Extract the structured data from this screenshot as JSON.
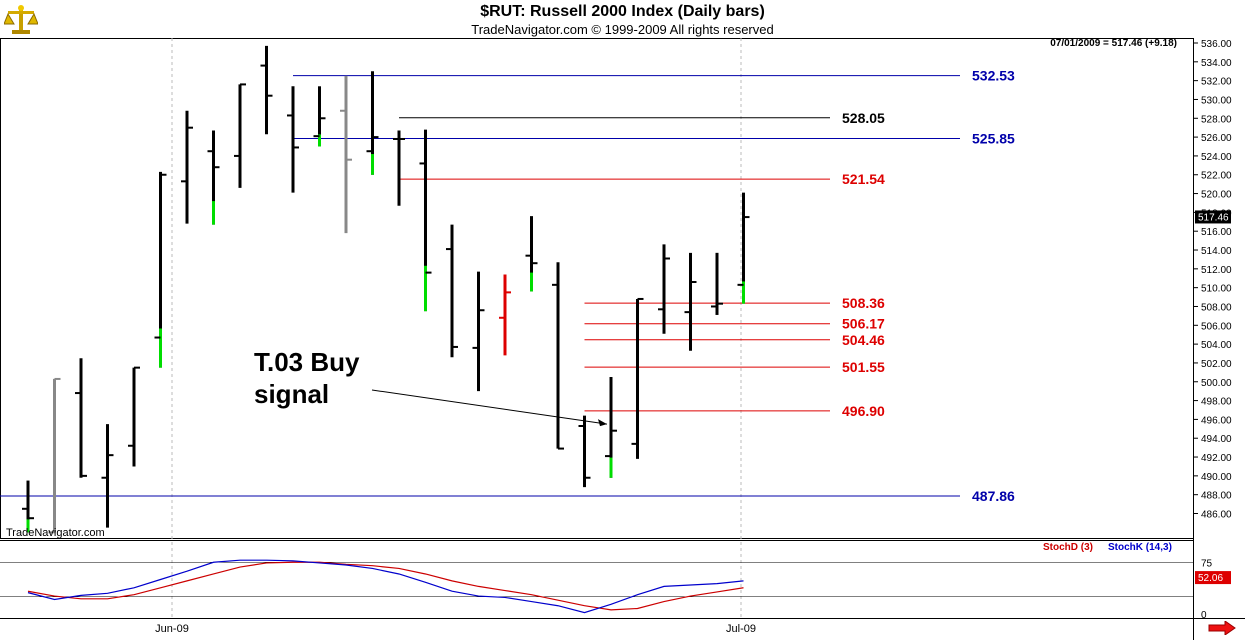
{
  "header": {
    "title": "$RUT:  Russell 2000 Index  (Daily bars)",
    "subtitle": "TradeNavigator.com © 1999-2009 All rights reserved",
    "readout": "07/01/2009 = 517.46 (+9.18)",
    "watermark": "TradeNavigator.com",
    "logo_icon": "scale-icon"
  },
  "colors": {
    "up_bar": "#00dd00",
    "down_bar": "#000000",
    "blue_level": "#0000aa",
    "red_level": "#dd0000",
    "stoch_d": "#cc0000",
    "stoch_k": "#0000cc"
  },
  "chart_data": [
    {
      "type": "ohlc",
      "title": "$RUT:  Russell 2000 Index  (Daily bars)",
      "ylim": [
        484,
        537
      ],
      "y_ticks": [
        486,
        488,
        490,
        492,
        494,
        496,
        498,
        500,
        502,
        504,
        506,
        508,
        510,
        512,
        514,
        516,
        518,
        520,
        522,
        524,
        526,
        528,
        530,
        532,
        534,
        536
      ],
      "x_labels": [
        "Jun-09",
        "Jul-09"
      ],
      "last_price_label": "517.46",
      "bars": [
        {
          "high": 489.5,
          "low": 484,
          "open": 486.5,
          "close": 485.5,
          "color": "mixed"
        },
        {
          "high": 500.3,
          "low": 484,
          "open": 484,
          "close": 500.3,
          "color": "gray"
        },
        {
          "high": 502.5,
          "low": 489.8,
          "open": 498.8,
          "close": 490.0,
          "color": "black"
        },
        {
          "high": 495.5,
          "low": 484.5,
          "open": 489.8,
          "close": 492.2,
          "color": "black"
        },
        {
          "high": 501.5,
          "low": 491.0,
          "open": 493.2,
          "close": 501.5,
          "color": "black"
        },
        {
          "high": 522.3,
          "low": 501.5,
          "open": 504.7,
          "close": 522.0,
          "color": "mixed"
        },
        {
          "high": 528.8,
          "low": 516.8,
          "open": 521.3,
          "close": 527.0,
          "color": "black"
        },
        {
          "high": 526.7,
          "low": 516.7,
          "open": 524.5,
          "close": 522.8,
          "color": "mixed"
        },
        {
          "high": 531.6,
          "low": 520.6,
          "open": 524.0,
          "close": 531.6,
          "color": "black"
        },
        {
          "high": 535.7,
          "low": 526.3,
          "open": 533.6,
          "close": 530.4,
          "color": "black"
        },
        {
          "high": 531.4,
          "low": 520.1,
          "open": 528.3,
          "close": 524.9,
          "color": "black"
        },
        {
          "high": 531.4,
          "low": 525.0,
          "open": 526.1,
          "close": 528.0,
          "color": "mixed"
        },
        {
          "high": 532.5,
          "low": 515.8,
          "open": 528.8,
          "close": 523.6,
          "color": "gray"
        },
        {
          "high": 533.0,
          "low": 522.0,
          "open": 524.5,
          "close": 526.0,
          "color": "mixed"
        },
        {
          "high": 526.7,
          "low": 518.7,
          "open": 525.8,
          "close": 525.8,
          "color": "black"
        },
        {
          "high": 526.8,
          "low": 507.5,
          "open": 523.2,
          "close": 511.6,
          "color": "mixed"
        },
        {
          "high": 516.7,
          "low": 502.6,
          "open": 514.1,
          "close": 503.7,
          "color": "black"
        },
        {
          "high": 511.7,
          "low": 499.0,
          "open": 503.6,
          "close": 507.6,
          "color": "black"
        },
        {
          "high": 511.4,
          "low": 502.8,
          "open": 506.8,
          "close": 509.5,
          "color": "red"
        },
        {
          "high": 517.6,
          "low": 509.6,
          "open": 513.4,
          "close": 512.6,
          "color": "mixed"
        },
        {
          "high": 512.7,
          "low": 492.9,
          "open": 510.3,
          "close": 492.9,
          "color": "black"
        },
        {
          "high": 496.4,
          "low": 488.8,
          "open": 495.3,
          "close": 489.8,
          "color": "black"
        },
        {
          "high": 500.5,
          "low": 489.8,
          "open": 492.1,
          "close": 494.8,
          "color": "mixed"
        },
        {
          "high": 508.8,
          "low": 491.8,
          "open": 493.4,
          "close": 508.8,
          "color": "black"
        },
        {
          "high": 514.6,
          "low": 505.1,
          "open": 507.7,
          "close": 513.1,
          "color": "black"
        },
        {
          "high": 513.7,
          "low": 503.3,
          "open": 507.4,
          "close": 510.6,
          "color": "black"
        },
        {
          "high": 513.7,
          "low": 507.1,
          "open": 508.0,
          "close": 508.3,
          "color": "black"
        },
        {
          "high": 520.1,
          "low": 508.3,
          "open": 510.3,
          "close": 517.5,
          "color": "mixed"
        }
      ],
      "levels": [
        {
          "value": 532.53,
          "label": "532.53",
          "color": "blue"
        },
        {
          "value": 528.05,
          "label": "528.05",
          "color": "black"
        },
        {
          "value": 525.85,
          "label": "525.85",
          "color": "blue"
        },
        {
          "value": 521.54,
          "label": "521.54",
          "color": "red"
        },
        {
          "value": 508.36,
          "label": "508.36",
          "color": "red"
        },
        {
          "value": 506.17,
          "label": "506.17",
          "color": "red"
        },
        {
          "value": 504.46,
          "label": "504.46",
          "color": "red"
        },
        {
          "value": 501.55,
          "label": "501.55",
          "color": "red"
        },
        {
          "value": 496.9,
          "label": "496.90",
          "color": "red"
        },
        {
          "value": 487.86,
          "label": "487.86",
          "color": "blue"
        }
      ],
      "annotations": [
        {
          "text_line1": "T.03 Buy",
          "text_line2": "signal",
          "points_to_bar": 22
        }
      ]
    },
    {
      "type": "line",
      "ylim": [
        0,
        100
      ],
      "y_ticks": [
        0,
        75
      ],
      "last_value_label": "52.06",
      "series": [
        {
          "name": "StochD (3)",
          "color": "#cc0000",
          "values": [
            33,
            26,
            22,
            22,
            28,
            38,
            48,
            58,
            68,
            74,
            75,
            75,
            72,
            70,
            66,
            58,
            48,
            40,
            34,
            28,
            20,
            12,
            6,
            8,
            18,
            26,
            32,
            38
          ]
        },
        {
          "name": "StochK (14,3)",
          "color": "#0000cc",
          "values": [
            31,
            21,
            27,
            30,
            38,
            50,
            62,
            75,
            78,
            78,
            77,
            74,
            71,
            66,
            58,
            46,
            33,
            26,
            24,
            18,
            12,
            2,
            14,
            28,
            40,
            42,
            44,
            48
          ]
        }
      ]
    }
  ]
}
